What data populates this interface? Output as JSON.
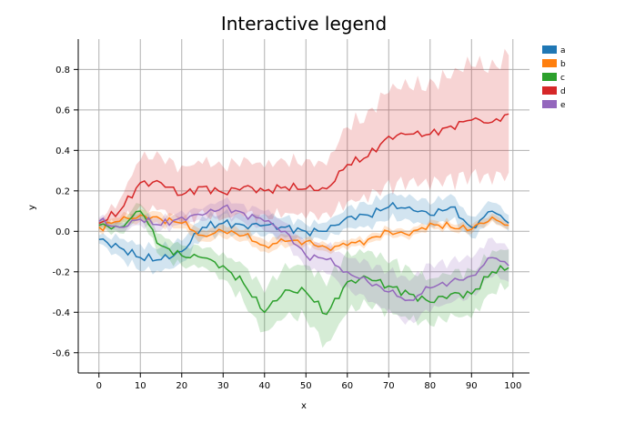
{
  "chart_data": {
    "type": "line",
    "title": "Interactive legend",
    "xlabel": "x",
    "ylabel": "y",
    "xlim": [
      -5,
      104
    ],
    "ylim": [
      -0.7,
      0.95
    ],
    "xticks": [
      0,
      10,
      20,
      30,
      40,
      50,
      60,
      70,
      80,
      90,
      100
    ],
    "yticks": [
      -0.6,
      -0.4,
      -0.2,
      0.0,
      0.2,
      0.4,
      0.6,
      0.8
    ],
    "xtick_labels": [
      "0",
      "10",
      "20",
      "30",
      "40",
      "50",
      "60",
      "70",
      "80",
      "90",
      "100"
    ],
    "ytick_labels": [
      "-0.6",
      "-0.4",
      "-0.2",
      "0.0",
      "0.2",
      "0.4",
      "0.6",
      "0.8"
    ],
    "grid": true,
    "legend_position": "top-right",
    "band": "shaded uncertainty band around each series",
    "series": [
      {
        "name": "a",
        "color": "#1f77b4",
        "x": [
          0,
          5,
          10,
          15,
          20,
          25,
          30,
          35,
          40,
          45,
          50,
          55,
          60,
          65,
          70,
          75,
          80,
          85,
          90,
          95,
          99
        ],
        "y": [
          -0.04,
          -0.08,
          -0.13,
          -0.14,
          -0.1,
          0.02,
          0.04,
          0.03,
          0.03,
          0.02,
          0.0,
          0.0,
          0.07,
          0.08,
          0.12,
          0.12,
          0.08,
          0.12,
          0.02,
          0.1,
          0.04
        ],
        "band_halfwidth": [
          0.02,
          0.05,
          0.06,
          0.06,
          0.06,
          0.05,
          0.05,
          0.05,
          0.05,
          0.05,
          0.04,
          0.04,
          0.05,
          0.06,
          0.06,
          0.06,
          0.06,
          0.06,
          0.05,
          0.05,
          0.04
        ]
      },
      {
        "name": "b",
        "color": "#ff7f0e",
        "x": [
          0,
          5,
          10,
          15,
          20,
          25,
          30,
          35,
          40,
          45,
          50,
          55,
          60,
          65,
          70,
          75,
          80,
          85,
          90,
          95,
          99
        ],
        "y": [
          0.02,
          0.05,
          0.08,
          0.06,
          0.04,
          -0.02,
          0.0,
          -0.02,
          -0.07,
          -0.05,
          -0.05,
          -0.08,
          -0.07,
          -0.04,
          0.0,
          -0.02,
          0.04,
          0.02,
          0.01,
          0.07,
          0.03
        ],
        "band_halfwidth": [
          0.02,
          0.02,
          0.03,
          0.03,
          0.03,
          0.03,
          0.03,
          0.03,
          0.03,
          0.03,
          0.02,
          0.02,
          0.02,
          0.02,
          0.02,
          0.02,
          0.02,
          0.02,
          0.02,
          0.02,
          0.02
        ]
      },
      {
        "name": "c",
        "color": "#2ca02c",
        "x": [
          0,
          5,
          10,
          15,
          20,
          25,
          30,
          35,
          40,
          45,
          50,
          55,
          60,
          65,
          70,
          75,
          80,
          85,
          90,
          95,
          99
        ],
        "y": [
          0.03,
          0.02,
          0.1,
          -0.07,
          -0.12,
          -0.13,
          -0.17,
          -0.26,
          -0.4,
          -0.29,
          -0.3,
          -0.41,
          -0.25,
          -0.23,
          -0.27,
          -0.31,
          -0.35,
          -0.31,
          -0.31,
          -0.2,
          -0.18
        ],
        "band_halfwidth": [
          0.02,
          0.03,
          0.04,
          0.05,
          0.05,
          0.05,
          0.06,
          0.09,
          0.11,
          0.12,
          0.13,
          0.16,
          0.14,
          0.13,
          0.13,
          0.12,
          0.11,
          0.11,
          0.11,
          0.1,
          0.09
        ]
      },
      {
        "name": "d",
        "color": "#d62728",
        "x": [
          0,
          5,
          10,
          15,
          20,
          25,
          30,
          35,
          40,
          45,
          50,
          55,
          60,
          65,
          70,
          75,
          80,
          85,
          90,
          95,
          99
        ],
        "y": [
          0.04,
          0.1,
          0.24,
          0.24,
          0.18,
          0.22,
          0.19,
          0.22,
          0.2,
          0.22,
          0.21,
          0.21,
          0.33,
          0.37,
          0.47,
          0.48,
          0.48,
          0.52,
          0.55,
          0.54,
          0.58
        ],
        "band_halfwidth": [
          0.02,
          0.05,
          0.13,
          0.13,
          0.13,
          0.13,
          0.13,
          0.13,
          0.13,
          0.13,
          0.13,
          0.13,
          0.19,
          0.2,
          0.24,
          0.24,
          0.24,
          0.26,
          0.28,
          0.27,
          0.29
        ]
      },
      {
        "name": "e",
        "color": "#9467bd",
        "x": [
          0,
          5,
          10,
          15,
          20,
          25,
          30,
          35,
          40,
          45,
          50,
          55,
          60,
          65,
          70,
          75,
          80,
          85,
          90,
          95,
          99
        ],
        "y": [
          0.05,
          0.02,
          0.06,
          0.03,
          0.07,
          0.08,
          0.12,
          0.09,
          0.05,
          0.0,
          -0.12,
          -0.14,
          -0.2,
          -0.25,
          -0.3,
          -0.34,
          -0.28,
          -0.25,
          -0.22,
          -0.13,
          -0.17
        ],
        "band_halfwidth": [
          0.02,
          0.02,
          0.03,
          0.03,
          0.03,
          0.03,
          0.04,
          0.04,
          0.05,
          0.05,
          0.06,
          0.07,
          0.08,
          0.09,
          0.1,
          0.11,
          0.11,
          0.1,
          0.1,
          0.09,
          0.08
        ]
      }
    ]
  }
}
